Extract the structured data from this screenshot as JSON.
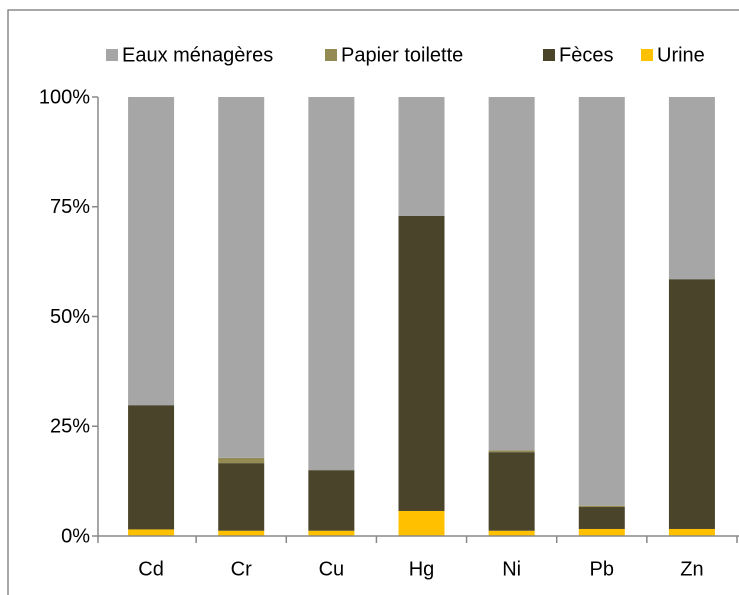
{
  "chart_data": {
    "type": "stacked_bar",
    "categories": [
      "Cd",
      "Cr",
      "Cu",
      "Hg",
      "Ni",
      "Pb",
      "Zn"
    ],
    "series": [
      {
        "name": "Urine",
        "color": "#ffc000",
        "values": [
          1.5,
          1.2,
          1.2,
          5.7,
          1.2,
          1.6,
          1.6
        ]
      },
      {
        "name": "Fèces",
        "color": "#4a442a",
        "values": [
          28.3,
          15.4,
          13.8,
          67.2,
          17.9,
          5.0,
          56.9
        ]
      },
      {
        "name": "Papier toilette",
        "color": "#948a54",
        "values": [
          0,
          1.2,
          0,
          0,
          0.4,
          0.3,
          0
        ]
      },
      {
        "name": "Eaux ménagères",
        "color": "#a6a6a6",
        "values": [
          70.2,
          82.2,
          85.0,
          27.1,
          80.5,
          93.1,
          41.5
        ]
      }
    ],
    "ylim": [
      0,
      100
    ],
    "yticks": [
      {
        "value": 0,
        "label": "0%"
      },
      {
        "value": 25,
        "label": "25%"
      },
      {
        "value": 50,
        "label": "50%"
      },
      {
        "value": 75,
        "label": "75%"
      },
      {
        "value": 100,
        "label": "100%"
      }
    ],
    "legend": "top"
  }
}
